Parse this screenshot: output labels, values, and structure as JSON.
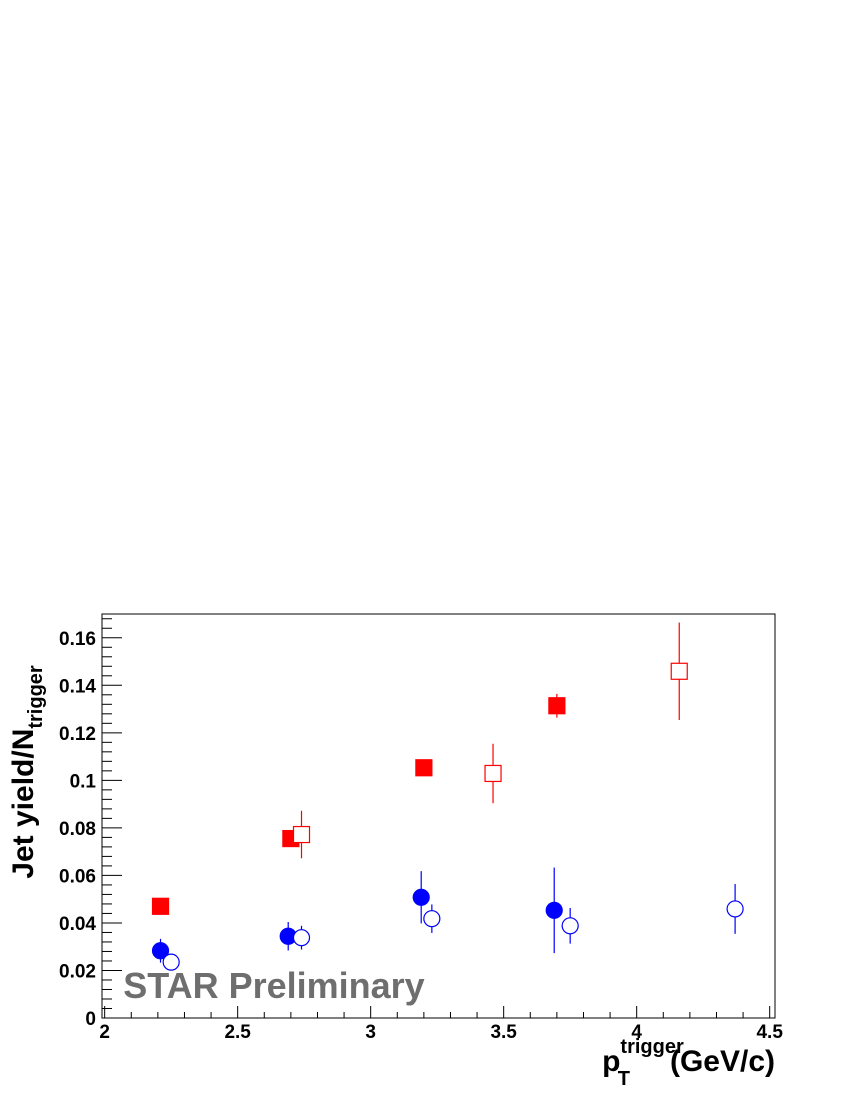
{
  "chart_data": {
    "type": "scatter",
    "title": "",
    "xlabel": {
      "main": "p",
      "sub": "T",
      "sup": "trigger",
      "unit": "(GeV/c)"
    },
    "ylabel": {
      "main": "Jet yield/N",
      "sub": "trigger"
    },
    "xlim": [
      1.99,
      4.52
    ],
    "ylim": [
      0,
      0.17
    ],
    "x_ticks": [
      {
        "value": 2,
        "label": "2"
      },
      {
        "value": 2.5,
        "label": "2.5"
      },
      {
        "value": 3,
        "label": "3"
      },
      {
        "value": 3.5,
        "label": "3.5"
      },
      {
        "value": 4,
        "label": "4"
      },
      {
        "value": 4.5,
        "label": "4.5"
      }
    ],
    "y_ticks": [
      {
        "value": 0,
        "label": "0"
      },
      {
        "value": 0.02,
        "label": "0.02"
      },
      {
        "value": 0.04,
        "label": "0.04"
      },
      {
        "value": 0.06,
        "label": "0.06"
      },
      {
        "value": 0.08,
        "label": "0.08"
      },
      {
        "value": 0.1,
        "label": "0.1"
      },
      {
        "value": 0.12,
        "label": "0.12"
      },
      {
        "value": 0.14,
        "label": "0.14"
      },
      {
        "value": 0.16,
        "label": "0.16"
      }
    ],
    "grid": false,
    "annotation": {
      "text": "STAR Preliminary",
      "color": "#6e6e6e",
      "x": 2.07,
      "y": 0.0085
    },
    "series": [
      {
        "marker": "square",
        "filled": true,
        "color": "#ff0000",
        "points": [
          {
            "x": 2.21,
            "y": 0.047,
            "err": 0.001
          },
          {
            "x": 2.7,
            "y": 0.0755,
            "err": 0.002
          },
          {
            "x": 3.2,
            "y": 0.1053,
            "err": 0.001
          },
          {
            "x": 3.7,
            "y": 0.1314,
            "err": 0.005
          }
        ]
      },
      {
        "marker": "square",
        "filled": false,
        "color": "#ff0000",
        "points": [
          {
            "x": 2.74,
            "y": 0.0772,
            "err": 0.01
          },
          {
            "x": 3.46,
            "y": 0.1029,
            "err": 0.0125
          },
          {
            "x": 4.16,
            "y": 0.1459,
            "err": 0.0205
          }
        ]
      },
      {
        "marker": "circle",
        "filled": true,
        "color": "#0000ff",
        "points": [
          {
            "x": 2.21,
            "y": 0.0283,
            "err": 0.005
          },
          {
            "x": 2.69,
            "y": 0.0344,
            "err": 0.006
          },
          {
            "x": 3.19,
            "y": 0.0508,
            "err": 0.011
          },
          {
            "x": 3.69,
            "y": 0.0453,
            "err": 0.018
          }
        ]
      },
      {
        "marker": "circle",
        "filled": false,
        "color": "#0000ff",
        "points": [
          {
            "x": 2.25,
            "y": 0.0235,
            "err": 0.002
          },
          {
            "x": 2.74,
            "y": 0.0338,
            "err": 0.005
          },
          {
            "x": 3.23,
            "y": 0.0418,
            "err": 0.006
          },
          {
            "x": 3.75,
            "y": 0.0388,
            "err": 0.0075
          },
          {
            "x": 4.37,
            "y": 0.0459,
            "err": 0.0105
          }
        ]
      }
    ]
  }
}
